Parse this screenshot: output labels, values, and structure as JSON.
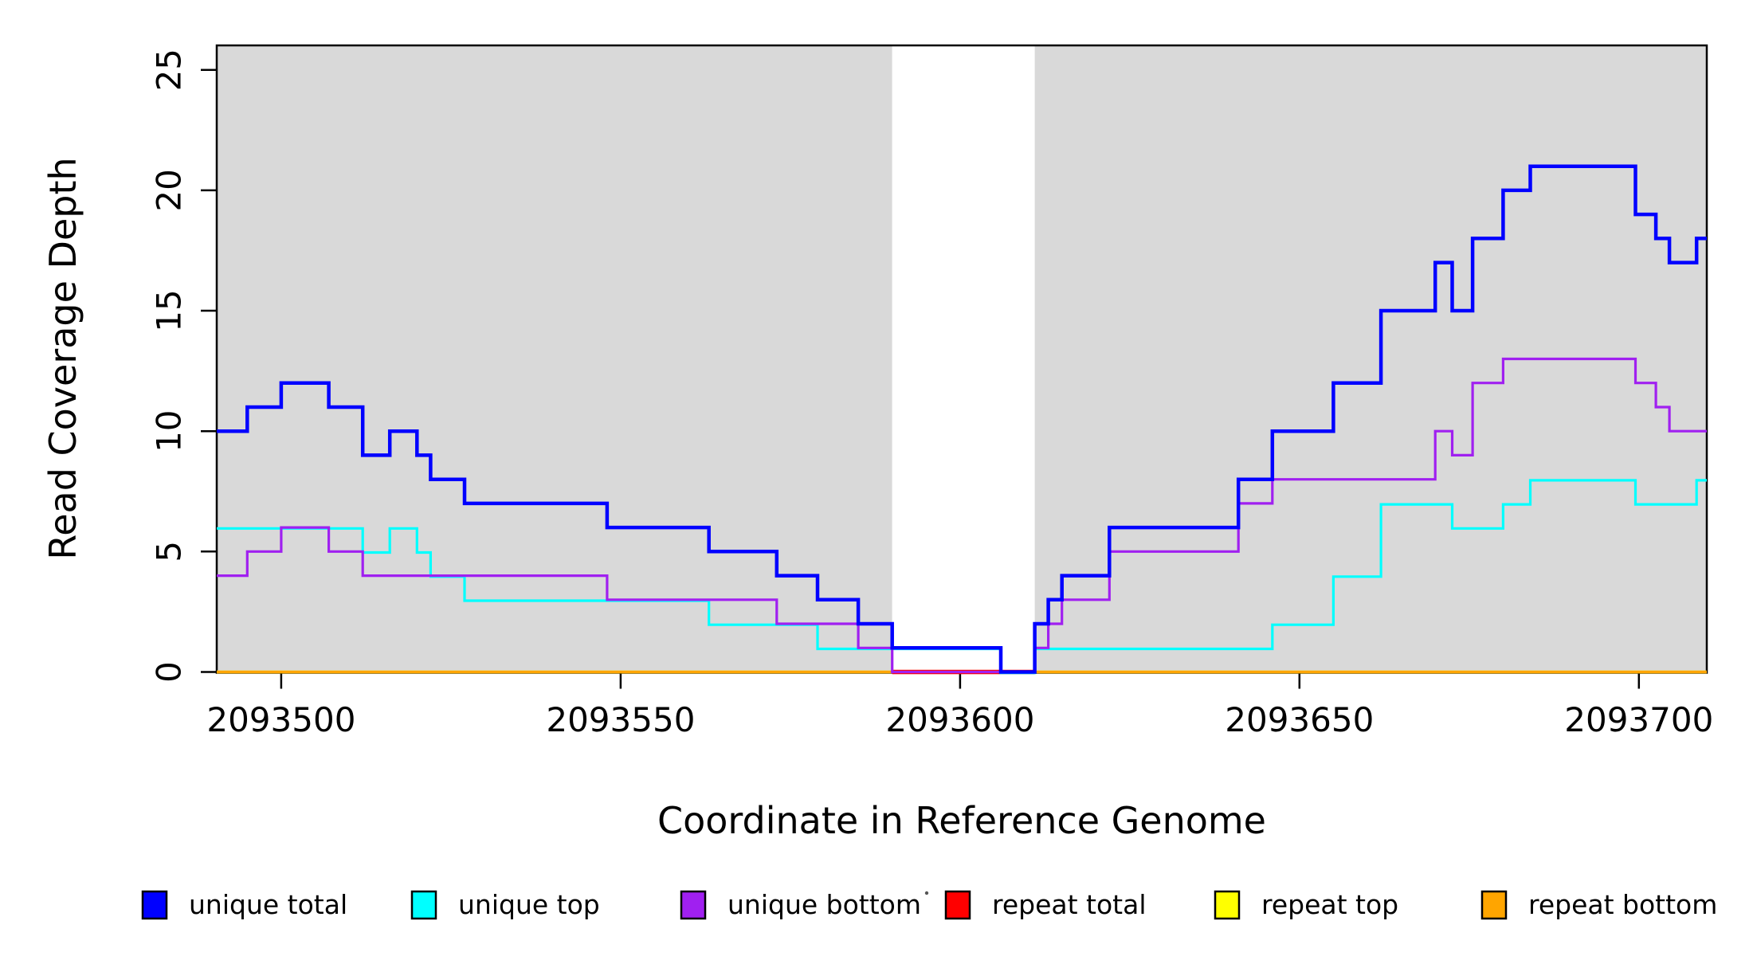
{
  "figure": {
    "background": "#FFFFFF",
    "plot_background_gray": "#D9D9D9"
  },
  "chart_data": {
    "type": "step",
    "title": "",
    "xlabel": "Coordinate in Reference Genome",
    "ylabel": "Read Coverage Depth",
    "xlim": [
      2093490.5,
      2093710
    ],
    "ylim": [
      0,
      26
    ],
    "grid": false,
    "legend_position": "bottom",
    "x_ticks": [
      2093500,
      2093550,
      2093600,
      2093650,
      2093700
    ],
    "y_ticks": [
      0,
      5,
      10,
      15,
      20,
      25
    ],
    "background_regions": [
      {
        "name": "gray-left",
        "x0": 2093490.5,
        "x1": 2093590,
        "color": "#D9D9D9"
      },
      {
        "name": "white-gap",
        "x0": 2093590,
        "x1": 2093611,
        "color": "#FFFFFF"
      },
      {
        "name": "gray-right",
        "x0": 2093611,
        "x1": 2093710,
        "color": "#D9D9D9"
      }
    ],
    "series": [
      {
        "name": "unique total",
        "color": "#0000FF",
        "segments": [
          {
            "end": 2093710,
            "points": [
              [
                2093490.5,
                10
              ],
              [
                2093495,
                11
              ],
              [
                2093500,
                12
              ],
              [
                2093507,
                11
              ],
              [
                2093512,
                9
              ],
              [
                2093516,
                10
              ],
              [
                2093520,
                9
              ],
              [
                2093522,
                8
              ],
              [
                2093527,
                7
              ],
              [
                2093548,
                6
              ],
              [
                2093563,
                5
              ],
              [
                2093573,
                4
              ],
              [
                2093579,
                3
              ],
              [
                2093585,
                2
              ],
              [
                2093590,
                1
              ],
              [
                2093606,
                0
              ],
              [
                2093611,
                2
              ],
              [
                2093613,
                3
              ],
              [
                2093615,
                4
              ],
              [
                2093622,
                6
              ],
              [
                2093641,
                8
              ],
              [
                2093646,
                10
              ],
              [
                2093655,
                12
              ],
              [
                2093662,
                15
              ],
              [
                2093670,
                17
              ],
              [
                2093672.5,
                15
              ],
              [
                2093675.5,
                18
              ],
              [
                2093680,
                20
              ],
              [
                2093684,
                21
              ],
              [
                2093699.5,
                19
              ],
              [
                2093702.5,
                18
              ],
              [
                2093704.5,
                17
              ],
              [
                2093708.5,
                18
              ]
            ]
          }
        ]
      },
      {
        "name": "unique top",
        "color": "#00FFFF",
        "segments": [
          {
            "end": 2093710,
            "points": [
              [
                2093490.5,
                6
              ],
              [
                2093512,
                5
              ],
              [
                2093516,
                6
              ],
              [
                2093520,
                5
              ],
              [
                2093522,
                4
              ],
              [
                2093527,
                3
              ],
              [
                2093563,
                2
              ],
              [
                2093579,
                1
              ],
              [
                2093606,
                0
              ],
              [
                2093611,
                1
              ],
              [
                2093646,
                2
              ],
              [
                2093655,
                4
              ],
              [
                2093662,
                7
              ],
              [
                2093672.5,
                6
              ],
              [
                2093680,
                7
              ],
              [
                2093684,
                8
              ],
              [
                2093699.5,
                7
              ],
              [
                2093708.5,
                8
              ]
            ]
          }
        ]
      },
      {
        "name": "unique bottom",
        "color": "#A020F0",
        "segments": [
          {
            "end": 2093710,
            "points": [
              [
                2093490.5,
                4
              ],
              [
                2093495,
                5
              ],
              [
                2093500,
                6
              ],
              [
                2093507,
                5
              ],
              [
                2093512,
                4
              ],
              [
                2093548,
                3
              ],
              [
                2093573,
                2
              ],
              [
                2093585,
                1
              ],
              [
                2093590,
                0
              ],
              [
                2093611,
                1
              ],
              [
                2093613,
                2
              ],
              [
                2093615,
                3
              ],
              [
                2093622,
                5
              ],
              [
                2093641,
                7
              ],
              [
                2093646,
                8
              ],
              [
                2093670,
                10
              ],
              [
                2093672.5,
                9
              ],
              [
                2093675.5,
                12
              ],
              [
                2093680,
                13
              ],
              [
                2093699.5,
                12
              ],
              [
                2093702.5,
                11
              ],
              [
                2093704.5,
                10
              ]
            ]
          }
        ]
      },
      {
        "name": "repeat total",
        "color": "#FF0000",
        "segments": [
          {
            "end": 2093611,
            "points": [
              [
                2093590,
                0
              ]
            ]
          }
        ]
      },
      {
        "name": "repeat top",
        "color": "#FFFF00",
        "segments": [
          {
            "end": 2093590,
            "points": [
              [
                2093490.5,
                0
              ]
            ]
          },
          {
            "end": 2093710,
            "points": [
              [
                2093611,
                0
              ]
            ]
          }
        ]
      },
      {
        "name": "repeat bottom",
        "color": "#FFA500",
        "segments": [
          {
            "end": 2093590,
            "points": [
              [
                2093490.5,
                0
              ]
            ]
          },
          {
            "end": 2093710,
            "points": [
              [
                2093611,
                0
              ]
            ]
          }
        ]
      }
    ]
  },
  "legend": {
    "items": [
      {
        "label": "unique total",
        "color": "#0000FF"
      },
      {
        "label": "unique top",
        "color": "#00FFFF"
      },
      {
        "label": "unique bottom",
        "color": "#A020F0"
      },
      {
        "label": "repeat total",
        "color": "#FF0000"
      },
      {
        "label": "repeat top",
        "color": "#FFFF00"
      },
      {
        "label": "repeat bottom",
        "color": "#FFA500"
      }
    ],
    "stray_dot": true
  }
}
